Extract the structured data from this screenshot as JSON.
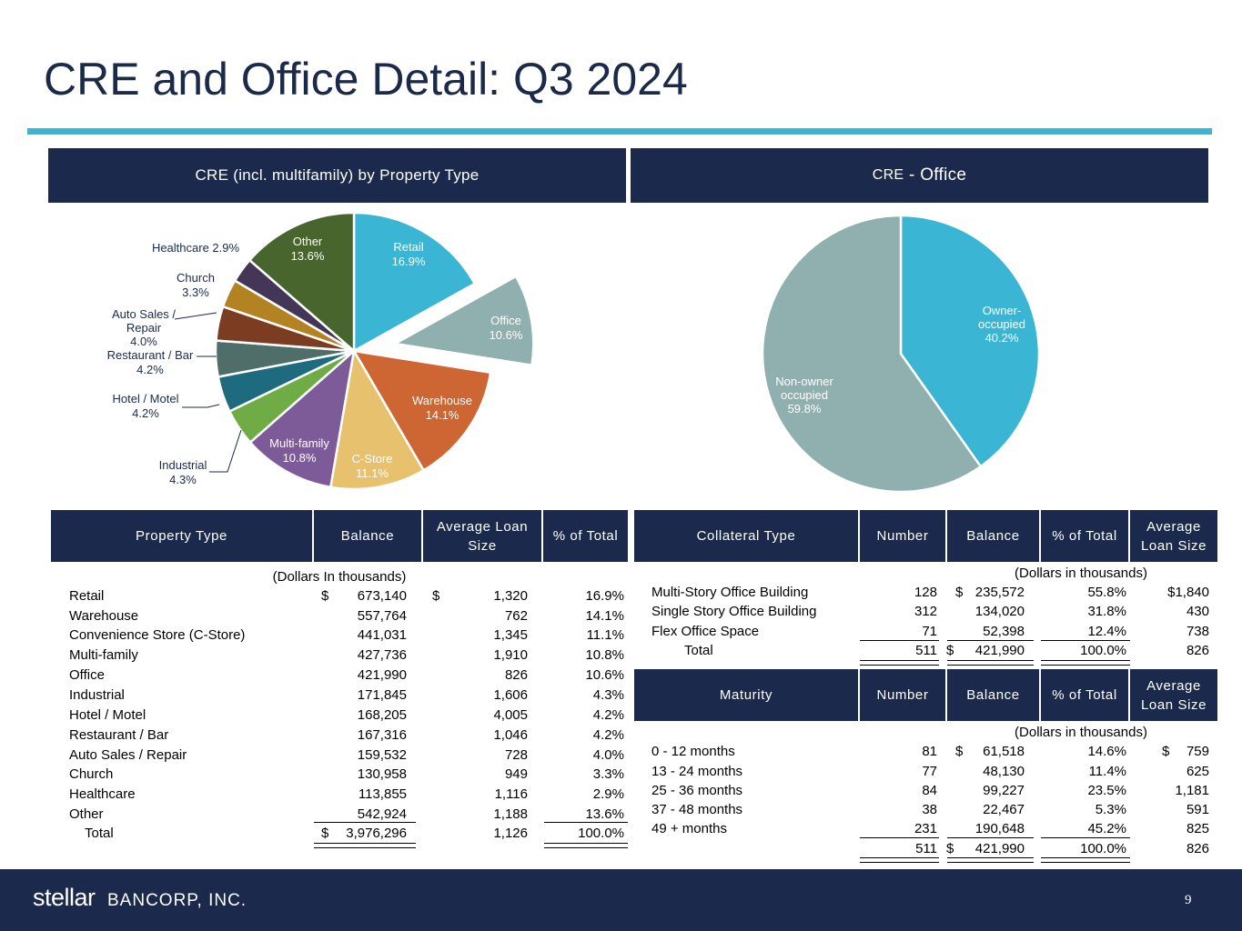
{
  "title": "CRE and Office Detail: Q3 2024",
  "colors": {
    "navy": "#1b2a4c",
    "accent": "#3ab5d3"
  },
  "left_panel": {
    "header": "CRE (incl. multifamily) by Property Type"
  },
  "right_panel": {
    "header_small": "CRE",
    "header_large": " - Office"
  },
  "chart_data": [
    {
      "type": "pie",
      "title": "CRE (incl. multifamily) by Property Type",
      "exploded": [
        "Office"
      ],
      "slices": [
        {
          "label": "Retail",
          "value": 16.9,
          "display": "16.9%",
          "color": "#3ab5d3"
        },
        {
          "label": "Office",
          "value": 10.6,
          "display": "10.6%",
          "color": "#8fb0ae"
        },
        {
          "label": "Warehouse",
          "value": 14.1,
          "display": "14.1%",
          "color": "#cd6633"
        },
        {
          "label": "C-Store",
          "value": 11.1,
          "display": "11.1%",
          "color": "#e8c16e"
        },
        {
          "label": "Multi-family",
          "value": 10.8,
          "display": "10.8%",
          "color": "#7c5b98"
        },
        {
          "label": "Industrial",
          "value": 4.3,
          "display": "4.3%",
          "color": "#6fac46"
        },
        {
          "label": "Hotel / Motel",
          "value": 4.2,
          "display": "4.2%",
          "color": "#1e6a7f"
        },
        {
          "label": "Restaurant / Bar",
          "value": 4.2,
          "display": "4.2%",
          "color": "#4f6d69"
        },
        {
          "label": "Auto Sales / Repair",
          "value": 4.0,
          "display": "4.0%",
          "color": "#7c3c22"
        },
        {
          "label": "Church",
          "value": 3.3,
          "display": "3.3%",
          "color": "#b28223"
        },
        {
          "label": "Healthcare",
          "value": 2.9,
          "display": "2.9%",
          "color": "#433656"
        },
        {
          "label": "Other",
          "value": 13.6,
          "display": "13.6%",
          "color": "#47652d"
        }
      ]
    },
    {
      "type": "pie",
      "title": "CRE - Office",
      "slices": [
        {
          "label": "Owner-occupied",
          "value": 40.2,
          "display": "40.2%",
          "color": "#3ab5d3"
        },
        {
          "label": "Non-owner occupied",
          "value": 59.8,
          "display": "59.8%",
          "color": "#8fb0ae"
        }
      ]
    }
  ],
  "pie_labels": {
    "retail": [
      "Retail",
      "16.9%"
    ],
    "office": [
      "Office",
      "10.6%"
    ],
    "warehouse": [
      "Warehouse",
      "14.1%"
    ],
    "cstore": [
      "C-Store",
      "11.1%"
    ],
    "multifamily": [
      "Multi-family",
      "10.8%"
    ],
    "industrial": [
      "Industrial",
      "4.3%"
    ],
    "hotel": [
      "Hotel / Motel",
      "4.2%"
    ],
    "restaurant": [
      "Restaurant / Bar",
      "4.2%"
    ],
    "auto": [
      "Auto Sales /",
      "Repair",
      "4.0%"
    ],
    "church": [
      "Church",
      "3.3%"
    ],
    "healthcare": [
      "Healthcare 2.9%"
    ],
    "other": [
      "Other",
      "13.6%"
    ],
    "owner": [
      "Owner-",
      "occupied",
      "40.2%"
    ],
    "nonowner": [
      "Non-owner",
      "occupied",
      "59.8%"
    ]
  },
  "property_table": {
    "headers": [
      "Property Type",
      "Balance",
      "Average Loan Size",
      "% of Total"
    ],
    "subheader": "(Dollars In thousands)",
    "dollar_sign": "$",
    "rows": [
      [
        "Retail",
        "673,140",
        "1,320",
        "16.9%"
      ],
      [
        "Warehouse",
        "557,764",
        "762",
        "14.1%"
      ],
      [
        "Convenience Store (C-Store)",
        "441,031",
        "1,345",
        "11.1%"
      ],
      [
        "Multi-family",
        "427,736",
        "1,910",
        "10.8%"
      ],
      [
        "Office",
        "421,990",
        "826",
        "10.6%"
      ],
      [
        "Industrial",
        "171,845",
        "1,606",
        "4.3%"
      ],
      [
        "Hotel / Motel",
        "168,205",
        "4,005",
        "4.2%"
      ],
      [
        "Restaurant / Bar",
        "167,316",
        "1,046",
        "4.2%"
      ],
      [
        "Auto Sales / Repair",
        "159,532",
        "728",
        "4.0%"
      ],
      [
        "Church",
        "130,958",
        "949",
        "3.3%"
      ],
      [
        "Healthcare",
        "113,855",
        "1,116",
        "2.9%"
      ],
      [
        "Other",
        "542,924",
        "1,188",
        "13.6%"
      ]
    ],
    "total": [
      "Total",
      "3,976,296",
      "1,126",
      "100.0%"
    ]
  },
  "collateral_table": {
    "headers": [
      "Collateral Type",
      "Number",
      "Balance",
      "% of Total",
      "Average Loan Size"
    ],
    "subheader": "(Dollars in thousands)",
    "rows": [
      [
        "Multi-Story Office Building",
        "128",
        "$",
        "235,572",
        "55.8%",
        "$1,840"
      ],
      [
        "Single Story Office Building",
        "312",
        "",
        "134,020",
        "31.8%",
        "430"
      ],
      [
        "Flex Office Space",
        "71",
        "",
        "52,398",
        "12.4%",
        "738"
      ]
    ],
    "total": [
      "Total",
      "511",
      "$",
      "421,990",
      "100.0%",
      "826"
    ]
  },
  "maturity_table": {
    "headers": [
      "Maturity",
      "Number",
      "Balance",
      "% of Total",
      "Average Loan Size"
    ],
    "subheader": "(Dollars in thousands)",
    "rows": [
      [
        "0 - 12 months",
        "81",
        "$",
        "61,518",
        "14.6%",
        "$",
        "759"
      ],
      [
        "13 - 24 months",
        "77",
        "",
        "48,130",
        "11.4%",
        "",
        "625"
      ],
      [
        "25 - 36 months",
        "84",
        "",
        "99,227",
        "23.5%",
        "",
        "1,181"
      ],
      [
        "37 - 48 months",
        "38",
        "",
        "22,467",
        "5.3%",
        "",
        "591"
      ],
      [
        "49 + months",
        "231",
        "",
        "190,648",
        "45.2%",
        "",
        "825"
      ]
    ],
    "total": [
      "",
      "511",
      "$",
      "421,990",
      "100.0%",
      "",
      "826"
    ]
  },
  "footer": {
    "logo_stellar": "stellar",
    "logo_bancorp": "BANCORP, INC.",
    "page_number": "9"
  }
}
